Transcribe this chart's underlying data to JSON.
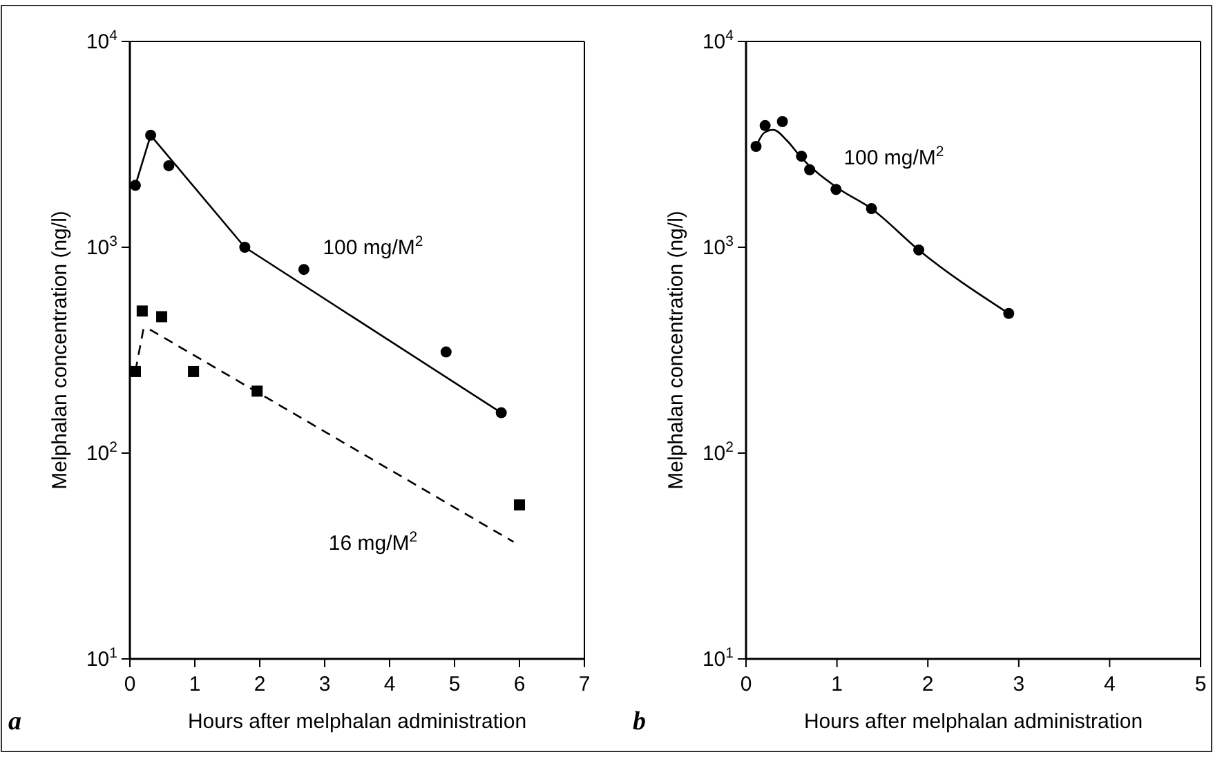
{
  "chart_data": [
    {
      "type": "scatter",
      "xlabel": "Hours after melphalan administration",
      "ylabel": "Melphalan concentration (ng/l)",
      "log": "y",
      "xlim": [
        0,
        7
      ],
      "xticks": [
        0,
        1,
        2,
        3,
        4,
        5,
        6,
        7
      ],
      "ylim": [
        10,
        10000
      ],
      "yticks": [
        {
          "value": 10,
          "label": "10$^{1}$"
        },
        {
          "value": 100,
          "label": "10$^{2}$"
        },
        {
          "value": 1000,
          "label": "10$^{3}$"
        },
        {
          "value": 10000,
          "label": "10$^{4}$"
        }
      ],
      "series": [
        {
          "marker": "circle",
          "color": "#000000",
          "x": [
            0.085,
            0.32,
            0.6,
            1.77,
            2.68,
            4.87,
            5.72
          ],
          "values": [
            2000,
            3500,
            2490,
            1000,
            780,
            310,
            157
          ]
        },
        {
          "type": "line",
          "marker": "none",
          "line_style": "solid",
          "color": "#000000",
          "x": [
            0.085,
            0.32,
            1.77,
            5.72
          ],
          "values": [
            2000,
            3500,
            1000,
            157
          ]
        },
        {
          "marker": "square",
          "color": "#000000",
          "x": [
            0.085,
            0.19,
            0.49,
            0.98,
            1.96,
            6.0
          ],
          "values": [
            249,
            490,
            460,
            249,
            200,
            56
          ]
        },
        {
          "type": "line",
          "marker": "none",
          "line_style": "dashed",
          "color": "#000000",
          "x": [
            0.085,
            0.21,
            0.3,
            5.91
          ],
          "values": [
            250,
            402,
            400,
            37
          ]
        }
      ],
      "annotations": [
        "100 mg/M$^{2}$",
        "16 mg/M$^{2}$",
        "a"
      ]
    },
    {
      "type": "scatter",
      "xlabel": "Hours after melphalan administration",
      "ylabel": "Melphalan concentration (ng/l)",
      "log": "y",
      "xlim": [
        0,
        5
      ],
      "xticks": [
        0,
        1,
        2,
        3,
        4,
        5
      ],
      "ylim": [
        10,
        10000
      ],
      "yticks": [
        {
          "value": 10,
          "label": "10$^{1}$"
        },
        {
          "value": 100,
          "label": "10$^{2}$"
        },
        {
          "value": 1000,
          "label": "10$^{3}$"
        },
        {
          "value": 10000,
          "label": "10$^{4}$"
        }
      ],
      "series": [
        {
          "marker": "circle",
          "color": "#000000",
          "x": [
            0.11,
            0.21,
            0.4,
            0.61,
            0.7,
            0.99,
            1.38,
            1.9,
            2.89
          ],
          "values": [
            3090,
            3900,
            4080,
            2770,
            2380,
            1910,
            1540,
            970,
            477
          ]
        },
        {
          "type": "line",
          "marker": "none",
          "line_style": "solid",
          "color": "#000000",
          "x": [
            0.11,
            0.2,
            0.3,
            0.45,
            0.6,
            1.0,
            1.38,
            1.9,
            2.89
          ],
          "values": [
            3090,
            3600,
            3720,
            3300,
            2750,
            1950,
            1540,
            970,
            477
          ]
        }
      ],
      "annotations": [
        "100 mg/M$^{2}$",
        "b"
      ]
    }
  ]
}
